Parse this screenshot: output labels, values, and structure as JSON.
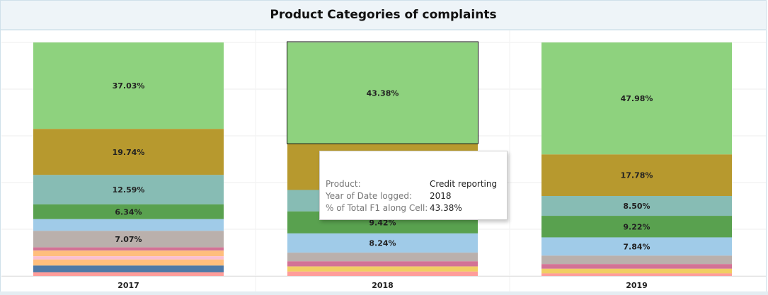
{
  "title": "Product Categories of complaints",
  "chart_data": {
    "type": "bar",
    "stacked": true,
    "categories": [
      "2017",
      "2018",
      "2019"
    ],
    "ylim": [
      0,
      100
    ],
    "grid": true,
    "series": [
      {
        "color": "#8ed27e",
        "values": [
          37.03,
          43.38,
          47.98
        ]
      },
      {
        "color": "#b7992e",
        "values": [
          19.74,
          19.8,
          17.78
        ]
      },
      {
        "color": "#87bcb4",
        "values": [
          12.59,
          9.2,
          8.5
        ]
      },
      {
        "color": "#59a14f",
        "values": [
          6.34,
          9.42,
          9.22
        ]
      },
      {
        "color": "#a0cbe8",
        "values": [
          5.0,
          8.24,
          7.84
        ]
      },
      {
        "color": "#bab0ac",
        "values": [
          7.07,
          3.7,
          3.6
        ]
      },
      {
        "color": "#d37295",
        "values": [
          1.4,
          2.2,
          2.0
        ]
      },
      {
        "color": "#ffbe7d",
        "values": [
          2.4,
          0,
          0
        ]
      },
      {
        "color": "#fabfd2",
        "values": [
          1.4,
          0,
          0
        ]
      },
      {
        "color": "#ffbe7d",
        "values": [
          2.6,
          0,
          0
        ]
      },
      {
        "color": "#4e79a7",
        "values": [
          2.9,
          0,
          0
        ]
      },
      {
        "color": "#f1ce63",
        "values": [
          0,
          2.2,
          2.0
        ]
      },
      {
        "color": "#ff9d9a",
        "values": [
          1.53,
          1.86,
          1.08
        ]
      }
    ],
    "data_labels": [
      [
        "37.03%",
        "43.38%",
        "47.98%"
      ],
      [
        "19.74%",
        "",
        "17.78%"
      ],
      [
        "12.59%",
        "",
        "8.50%"
      ],
      [
        "6.34%",
        "9.42%",
        "9.22%"
      ],
      [
        "",
        "8.24%",
        "7.84%"
      ],
      [
        "7.07%",
        "",
        ""
      ],
      [
        "",
        "",
        ""
      ],
      [
        "",
        "",
        ""
      ],
      [
        "",
        "",
        ""
      ],
      [
        "",
        "",
        ""
      ],
      [
        "",
        "",
        ""
      ],
      [
        "",
        "",
        ""
      ],
      [
        "",
        "",
        ""
      ]
    ],
    "highlight": {
      "series_index": 0,
      "category_index": 1
    }
  },
  "tooltip": {
    "rows": [
      {
        "label": "Product:",
        "value": "Credit reporting"
      },
      {
        "label": "Year of Date logged:",
        "value": "2018"
      },
      {
        "label": "% of Total F1 along Cell:",
        "value": "43.38%"
      }
    ]
  }
}
